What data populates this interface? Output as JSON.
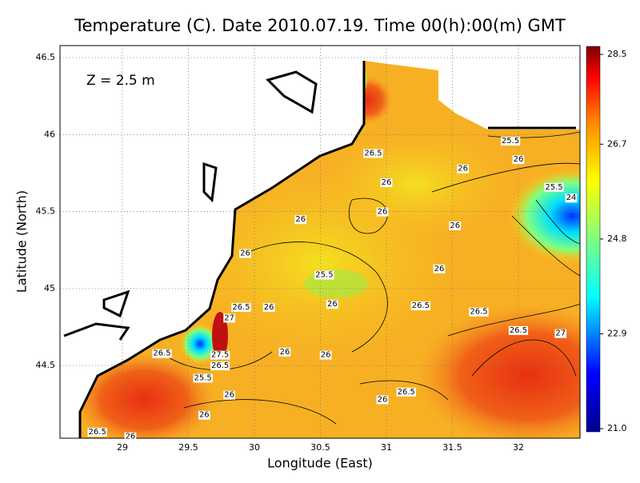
{
  "title": "Temperature (C). Date 2010.07.19. Time 00(h):00(m) GMT",
  "annotation": "Z = 2.5 m",
  "map": {
    "xlabel": "Longitude (East)",
    "ylabel": "Latitude (North)",
    "xlim": [
      28.527,
      32.467
    ],
    "ylim": [
      44.028,
      46.578
    ],
    "xticks": [
      29,
      29.5,
      30,
      30.5,
      31,
      31.5,
      32
    ],
    "yticks": [
      44.5,
      45,
      45.5,
      46,
      46.5
    ],
    "grid": true,
    "contour_labels": [
      {
        "value": 25.5,
        "lon": 31.94,
        "lat": 45.96
      },
      {
        "value": 26,
        "lon": 32.0,
        "lat": 45.84
      },
      {
        "value": 26,
        "lon": 31.58,
        "lat": 45.78
      },
      {
        "value": 26.5,
        "lon": 30.9,
        "lat": 45.88
      },
      {
        "value": 26,
        "lon": 31.0,
        "lat": 45.69
      },
      {
        "value": 25.5,
        "lon": 32.27,
        "lat": 45.66
      },
      {
        "value": 24,
        "lon": 32.4,
        "lat": 45.59
      },
      {
        "value": 26,
        "lon": 30.97,
        "lat": 45.5
      },
      {
        "value": 26,
        "lon": 30.35,
        "lat": 45.45
      },
      {
        "value": 26,
        "lon": 31.52,
        "lat": 45.41
      },
      {
        "value": 26,
        "lon": 29.93,
        "lat": 45.23
      },
      {
        "value": 26,
        "lon": 31.4,
        "lat": 45.13
      },
      {
        "value": 25.5,
        "lon": 30.53,
        "lat": 45.09
      },
      {
        "value": 26.5,
        "lon": 29.9,
        "lat": 44.88
      },
      {
        "value": 26,
        "lon": 30.11,
        "lat": 44.88
      },
      {
        "value": 27,
        "lon": 29.81,
        "lat": 44.81
      },
      {
        "value": 26,
        "lon": 30.59,
        "lat": 44.9
      },
      {
        "value": 26.5,
        "lon": 31.26,
        "lat": 44.89
      },
      {
        "value": 26.5,
        "lon": 31.7,
        "lat": 44.85
      },
      {
        "value": 26.5,
        "lon": 32.0,
        "lat": 44.73
      },
      {
        "value": 27,
        "lon": 32.32,
        "lat": 44.71
      },
      {
        "value": 26.5,
        "lon": 29.3,
        "lat": 44.58
      },
      {
        "value": 27.5,
        "lon": 29.74,
        "lat": 44.57
      },
      {
        "value": 26.5,
        "lon": 29.74,
        "lat": 44.5
      },
      {
        "value": 26,
        "lon": 30.23,
        "lat": 44.59
      },
      {
        "value": 26,
        "lon": 30.54,
        "lat": 44.57
      },
      {
        "value": 25.5,
        "lon": 29.61,
        "lat": 44.42
      },
      {
        "value": 26,
        "lon": 29.81,
        "lat": 44.31
      },
      {
        "value": 26.5,
        "lon": 31.15,
        "lat": 44.33
      },
      {
        "value": 26,
        "lon": 30.97,
        "lat": 44.28
      },
      {
        "value": 26,
        "lon": 29.62,
        "lat": 44.18
      },
      {
        "value": 26.5,
        "lon": 28.81,
        "lat": 44.07
      },
      {
        "value": 26,
        "lon": 29.06,
        "lat": 44.04
      }
    ]
  },
  "colorbar": {
    "lim": [
      21,
      28.5
    ],
    "ticks": [
      28.5,
      26.7,
      24.8,
      22.9,
      {
        "value": 21,
        "label": "21.0"
      }
    ]
  }
}
